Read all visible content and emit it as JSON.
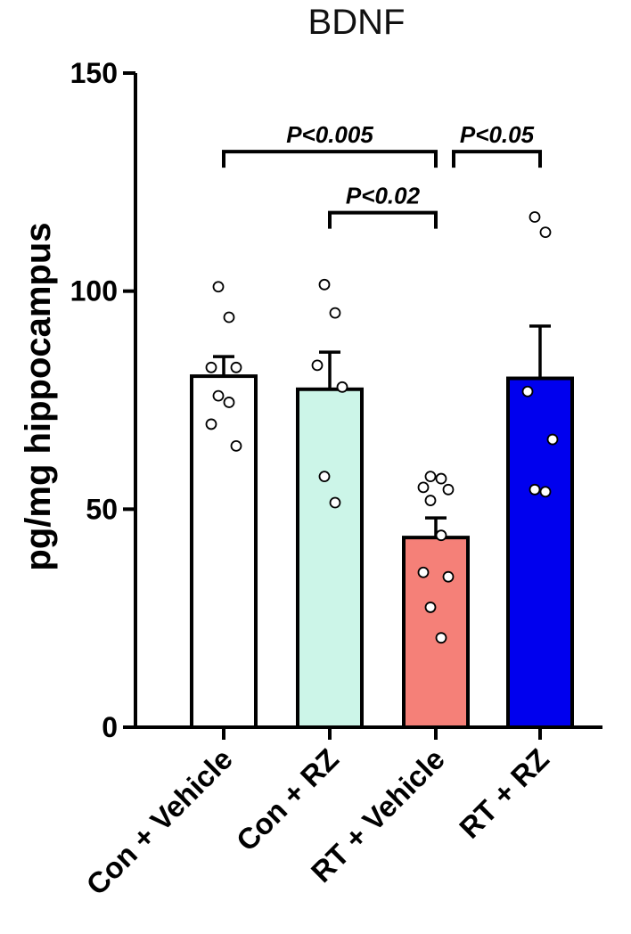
{
  "chart_data": {
    "type": "bar",
    "title": "BDNF",
    "xlabel": "",
    "ylabel": "pg/mg hippocampus",
    "ylim": [
      0,
      150
    ],
    "yticks": [
      0,
      50,
      100,
      150
    ],
    "grid": false,
    "categories": [
      "Con + Vehicle",
      "Con + RZ",
      "RT + Vehicle",
      "RT + RZ"
    ],
    "values": [
      80.5,
      77.5,
      43.5,
      80
    ],
    "errors": [
      4.5,
      8.5,
      4.5,
      12
    ],
    "colors": [
      "#ffffff",
      "#ccf5e8",
      "#f58078",
      "#0000ee"
    ],
    "points": [
      [
        101,
        94,
        82.5,
        82.5,
        76,
        74.5,
        69.5,
        64.5
      ],
      [
        101.5,
        95,
        83,
        78,
        57.5,
        51.5
      ],
      [
        57.5,
        57,
        55,
        54.5,
        52,
        44,
        35.5,
        34.5,
        27.5,
        20.5
      ],
      [
        117,
        113.5,
        77,
        66,
        54.5,
        54
      ]
    ],
    "comparisons": [
      {
        "from": 0,
        "to": 2,
        "y": 132,
        "label": "P<0.005"
      },
      {
        "from": 1,
        "to": 2,
        "y": 118,
        "label": "P<0.02"
      },
      {
        "from": 2,
        "to": 3,
        "y": 132,
        "label": "P<0.05"
      }
    ]
  }
}
